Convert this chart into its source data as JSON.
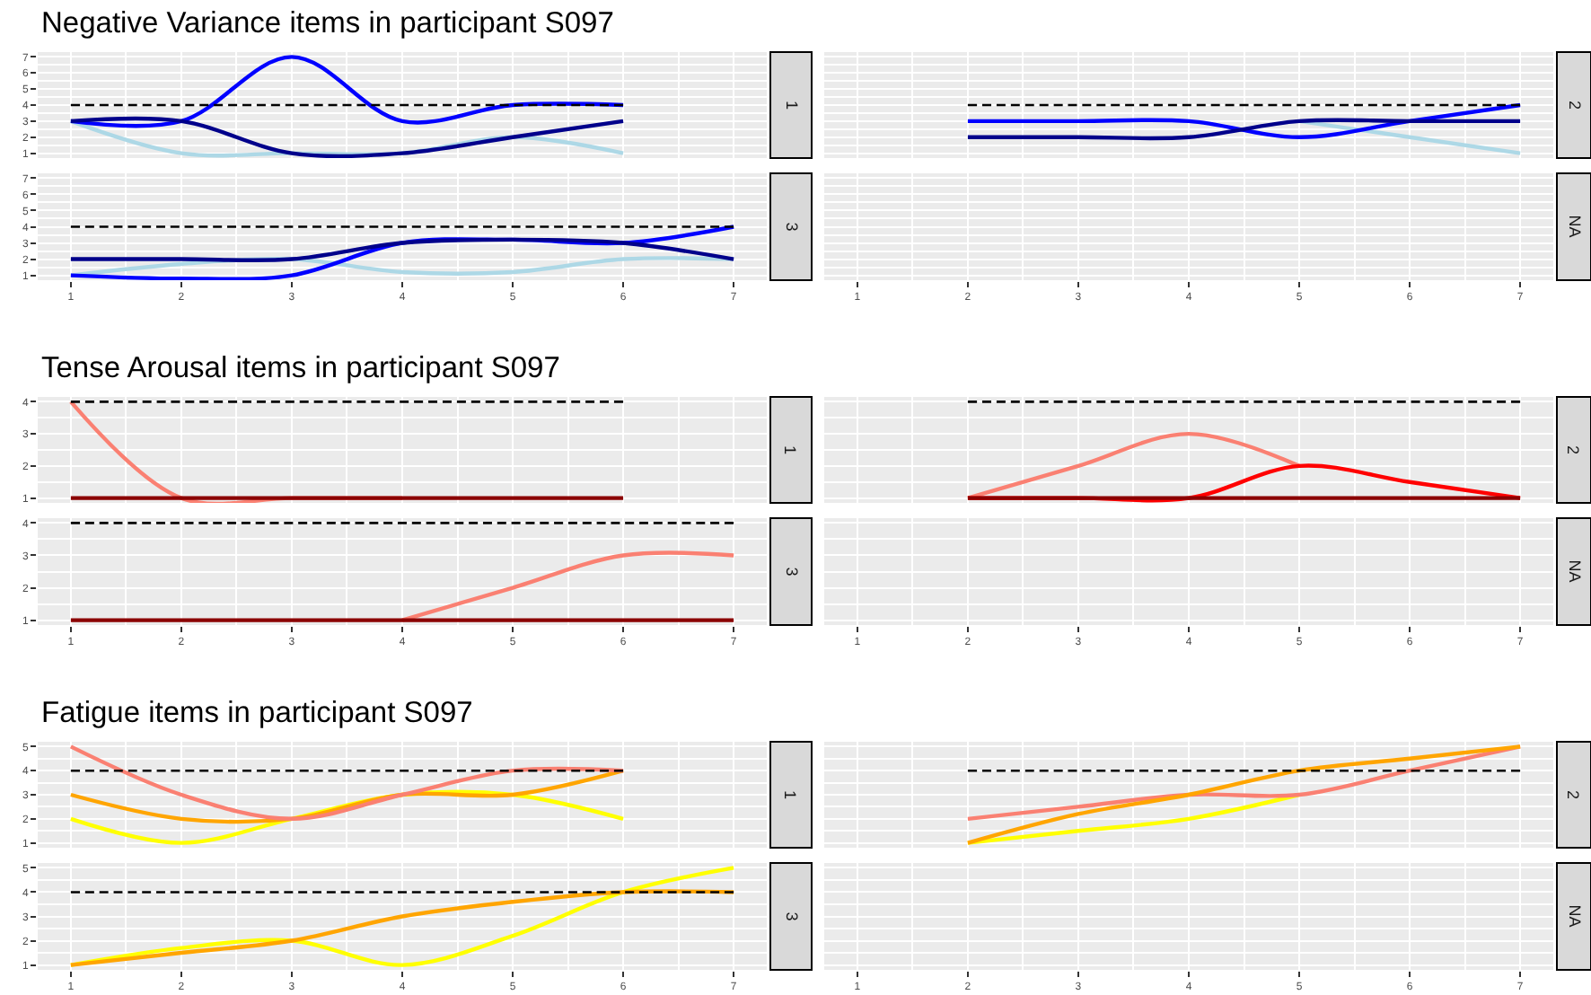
{
  "chart_data": [
    {
      "type": "line",
      "title": "Negative Variance items in participant S097",
      "annotations": [
        "1"
      ],
      "x": [
        1,
        2,
        3,
        4,
        5,
        6
      ],
      "xlim": [
        0.7,
        7.3
      ],
      "xticks": [
        1,
        2,
        3,
        4,
        5,
        6,
        7
      ],
      "ylim": [
        0.7,
        7.3
      ],
      "yticks": [
        1,
        2,
        3,
        4,
        5,
        6,
        7
      ],
      "grid": true,
      "tick_labels": "y",
      "series": [
        {
          "color": "#add8e6",
          "values": [
            3,
            1,
            1,
            1,
            2,
            1
          ]
        },
        {
          "color": "#0000ff",
          "values": [
            3,
            3,
            7,
            3,
            4,
            4
          ]
        },
        {
          "color": "#00008b",
          "values": [
            3,
            3,
            1,
            1,
            2,
            3
          ]
        },
        {
          "color": "#000000",
          "line_style": "dashed",
          "values": [
            4,
            4,
            4,
            4,
            4,
            4
          ]
        }
      ]
    },
    {
      "type": "line",
      "annotations": [
        "2"
      ],
      "x": [
        2,
        3,
        4,
        5,
        6,
        7
      ],
      "xlim": [
        0.7,
        7.3
      ],
      "xticks": [
        1,
        2,
        3,
        4,
        5,
        6,
        7
      ],
      "ylim": [
        0.7,
        7.3
      ],
      "yticks": [
        1,
        2,
        3,
        4,
        5,
        6,
        7
      ],
      "grid": true,
      "tick_labels": false,
      "series": [
        {
          "color": "#add8e6",
          "values": [
            null,
            null,
            null,
            3,
            2,
            1
          ]
        },
        {
          "color": "#0000ff",
          "values": [
            3,
            3,
            3,
            2,
            3,
            4
          ]
        },
        {
          "color": "#00008b",
          "values": [
            2,
            2,
            2,
            3,
            3,
            3
          ]
        },
        {
          "color": "#000000",
          "line_style": "dashed",
          "values": [
            4,
            4,
            4,
            4,
            4,
            4
          ]
        }
      ]
    },
    {
      "type": "line",
      "annotations": [
        "3"
      ],
      "x": [
        1,
        2,
        3,
        4,
        5,
        6,
        7
      ],
      "xlim": [
        0.7,
        7.3
      ],
      "xticks": [
        1,
        2,
        3,
        4,
        5,
        6,
        7
      ],
      "ylim": [
        0.7,
        7.3
      ],
      "yticks": [
        1,
        2,
        3,
        4,
        5,
        6,
        7
      ],
      "grid": true,
      "series": [
        {
          "color": "#add8e6",
          "values": [
            1,
            1.7,
            2,
            1.2,
            1.2,
            2,
            2
          ]
        },
        {
          "color": "#0000ff",
          "values": [
            1,
            0.8,
            1,
            3,
            3.2,
            3,
            4
          ]
        },
        {
          "color": "#00008b",
          "values": [
            2,
            2,
            2,
            3,
            3.2,
            3,
            2
          ]
        },
        {
          "color": "#000000",
          "line_style": "dashed",
          "values": [
            4,
            4,
            4,
            4,
            4,
            4,
            4
          ]
        }
      ]
    },
    {
      "type": "line",
      "annotations": [
        "NA"
      ],
      "xlim": [
        0.7,
        7.3
      ],
      "xticks": [
        1,
        2,
        3,
        4,
        5,
        6,
        7
      ],
      "ylim": [
        0.7,
        7.3
      ],
      "yticks": [
        1,
        2,
        3,
        4,
        5,
        6,
        7
      ],
      "grid": true,
      "tick_labels": "x"
    },
    {
      "type": "line",
      "title": "Tense Arousal items in participant S097",
      "annotations": [
        "1"
      ],
      "x": [
        1,
        2,
        3,
        4,
        5,
        6
      ],
      "xlim": [
        0.7,
        7.3
      ],
      "xticks": [
        1,
        2,
        3,
        4,
        5,
        6,
        7
      ],
      "ylim": [
        0.85,
        4.15
      ],
      "yticks": [
        1,
        2,
        3,
        4
      ],
      "grid": true,
      "tick_labels": "y",
      "series": [
        {
          "color": "#fa8072",
          "values": [
            4,
            1,
            1,
            1,
            null,
            null
          ]
        },
        {
          "color": "#8b0000",
          "values": [
            1,
            1,
            1,
            1,
            1,
            1
          ]
        },
        {
          "color": "#000000",
          "line_style": "dashed",
          "values": [
            4,
            4,
            4,
            4,
            4,
            4
          ]
        }
      ]
    },
    {
      "type": "line",
      "annotations": [
        "2"
      ],
      "x": [
        2,
        3,
        4,
        5,
        6,
        7
      ],
      "xlim": [
        0.7,
        7.3
      ],
      "xticks": [
        1,
        2,
        3,
        4,
        5,
        6,
        7
      ],
      "ylim": [
        0.85,
        4.15
      ],
      "yticks": [
        1,
        2,
        3,
        4
      ],
      "grid": true,
      "tick_labels": false,
      "series": [
        {
          "color": "#fa8072",
          "values": [
            1,
            2,
            3,
            2,
            null,
            null
          ]
        },
        {
          "color": "#ff0000",
          "values": [
            1,
            1,
            1,
            2,
            1.5,
            1
          ]
        },
        {
          "color": "#8b0000",
          "values": [
            1,
            1,
            1,
            1,
            1,
            1
          ]
        },
        {
          "color": "#000000",
          "line_style": "dashed",
          "values": [
            4,
            4,
            4,
            4,
            4,
            4
          ]
        }
      ]
    },
    {
      "type": "line",
      "annotations": [
        "3"
      ],
      "x": [
        1,
        2,
        3,
        4,
        5,
        6,
        7
      ],
      "xlim": [
        0.7,
        7.3
      ],
      "xticks": [
        1,
        2,
        3,
        4,
        5,
        6,
        7
      ],
      "ylim": [
        0.85,
        4.15
      ],
      "yticks": [
        1,
        2,
        3,
        4
      ],
      "grid": true,
      "series": [
        {
          "color": "#fa8072",
          "values": [
            null,
            null,
            null,
            1,
            2,
            3,
            3
          ]
        },
        {
          "color": "#8b0000",
          "values": [
            1,
            1,
            1,
            1,
            1,
            1,
            1
          ]
        },
        {
          "color": "#000000",
          "line_style": "dashed",
          "values": [
            4,
            4,
            4,
            4,
            4,
            4,
            4
          ]
        }
      ]
    },
    {
      "type": "line",
      "annotations": [
        "NA"
      ],
      "xlim": [
        0.7,
        7.3
      ],
      "xticks": [
        1,
        2,
        3,
        4,
        5,
        6,
        7
      ],
      "ylim": [
        0.85,
        4.15
      ],
      "yticks": [
        1,
        2,
        3,
        4
      ],
      "grid": true,
      "tick_labels": "x"
    },
    {
      "type": "line",
      "title": "Fatigue items in participant S097",
      "annotations": [
        "1"
      ],
      "x": [
        1,
        2,
        3,
        4,
        5,
        6
      ],
      "xlim": [
        0.7,
        7.3
      ],
      "xticks": [
        1,
        2,
        3,
        4,
        5,
        6,
        7
      ],
      "ylim": [
        0.8,
        5.2
      ],
      "yticks": [
        1,
        2,
        3,
        4,
        5
      ],
      "grid": true,
      "tick_labels": "y",
      "series": [
        {
          "color": "#ffff00",
          "values": [
            2,
            1,
            2,
            3,
            3,
            2
          ]
        },
        {
          "color": "#ffa500",
          "values": [
            3,
            2,
            2,
            3,
            3,
            4
          ]
        },
        {
          "color": "#fa8072",
          "values": [
            5,
            3,
            2,
            3,
            4,
            4
          ]
        },
        {
          "color": "#000000",
          "line_style": "dashed",
          "values": [
            4,
            4,
            4,
            4,
            4,
            4
          ]
        }
      ]
    },
    {
      "type": "line",
      "annotations": [
        "2"
      ],
      "x": [
        2,
        3,
        4,
        5,
        6,
        7
      ],
      "xlim": [
        0.7,
        7.3
      ],
      "xticks": [
        1,
        2,
        3,
        4,
        5,
        6,
        7
      ],
      "ylim": [
        0.8,
        5.2
      ],
      "yticks": [
        1,
        2,
        3,
        4,
        5
      ],
      "grid": true,
      "tick_labels": false,
      "series": [
        {
          "color": "#ffff00",
          "values": [
            1,
            1.5,
            2,
            3,
            null,
            null
          ]
        },
        {
          "color": "#fa8072",
          "values": [
            2,
            2.5,
            3,
            3,
            4,
            5
          ]
        },
        {
          "color": "#ffa500",
          "values": [
            1,
            2.2,
            3,
            4,
            4.5,
            5
          ]
        },
        {
          "color": "#000000",
          "line_style": "dashed",
          "values": [
            4,
            4,
            4,
            4,
            4,
            4
          ]
        }
      ]
    },
    {
      "type": "line",
      "annotations": [
        "3"
      ],
      "x": [
        1,
        2,
        3,
        4,
        5,
        6,
        7
      ],
      "xlim": [
        0.7,
        7.3
      ],
      "xticks": [
        1,
        2,
        3,
        4,
        5,
        6,
        7
      ],
      "ylim": [
        0.8,
        5.2
      ],
      "yticks": [
        1,
        2,
        3,
        4,
        5
      ],
      "grid": true,
      "series": [
        {
          "color": "#ffff00",
          "values": [
            1,
            1.7,
            2,
            1,
            2.2,
            4,
            5
          ]
        },
        {
          "color": "#ffa500",
          "values": [
            1,
            1.5,
            2,
            3,
            3.6,
            4,
            4
          ]
        },
        {
          "color": "#000000",
          "line_style": "dashed",
          "values": [
            4,
            4,
            4,
            4,
            4,
            4,
            4
          ]
        }
      ]
    },
    {
      "type": "line",
      "annotations": [
        "NA"
      ],
      "xlim": [
        0.7,
        7.3
      ],
      "xticks": [
        1,
        2,
        3,
        4,
        5,
        6,
        7
      ],
      "ylim": [
        0.8,
        5.2
      ],
      "yticks": [
        1,
        2,
        3,
        4,
        5
      ],
      "grid": true,
      "tick_labels": "x"
    }
  ]
}
